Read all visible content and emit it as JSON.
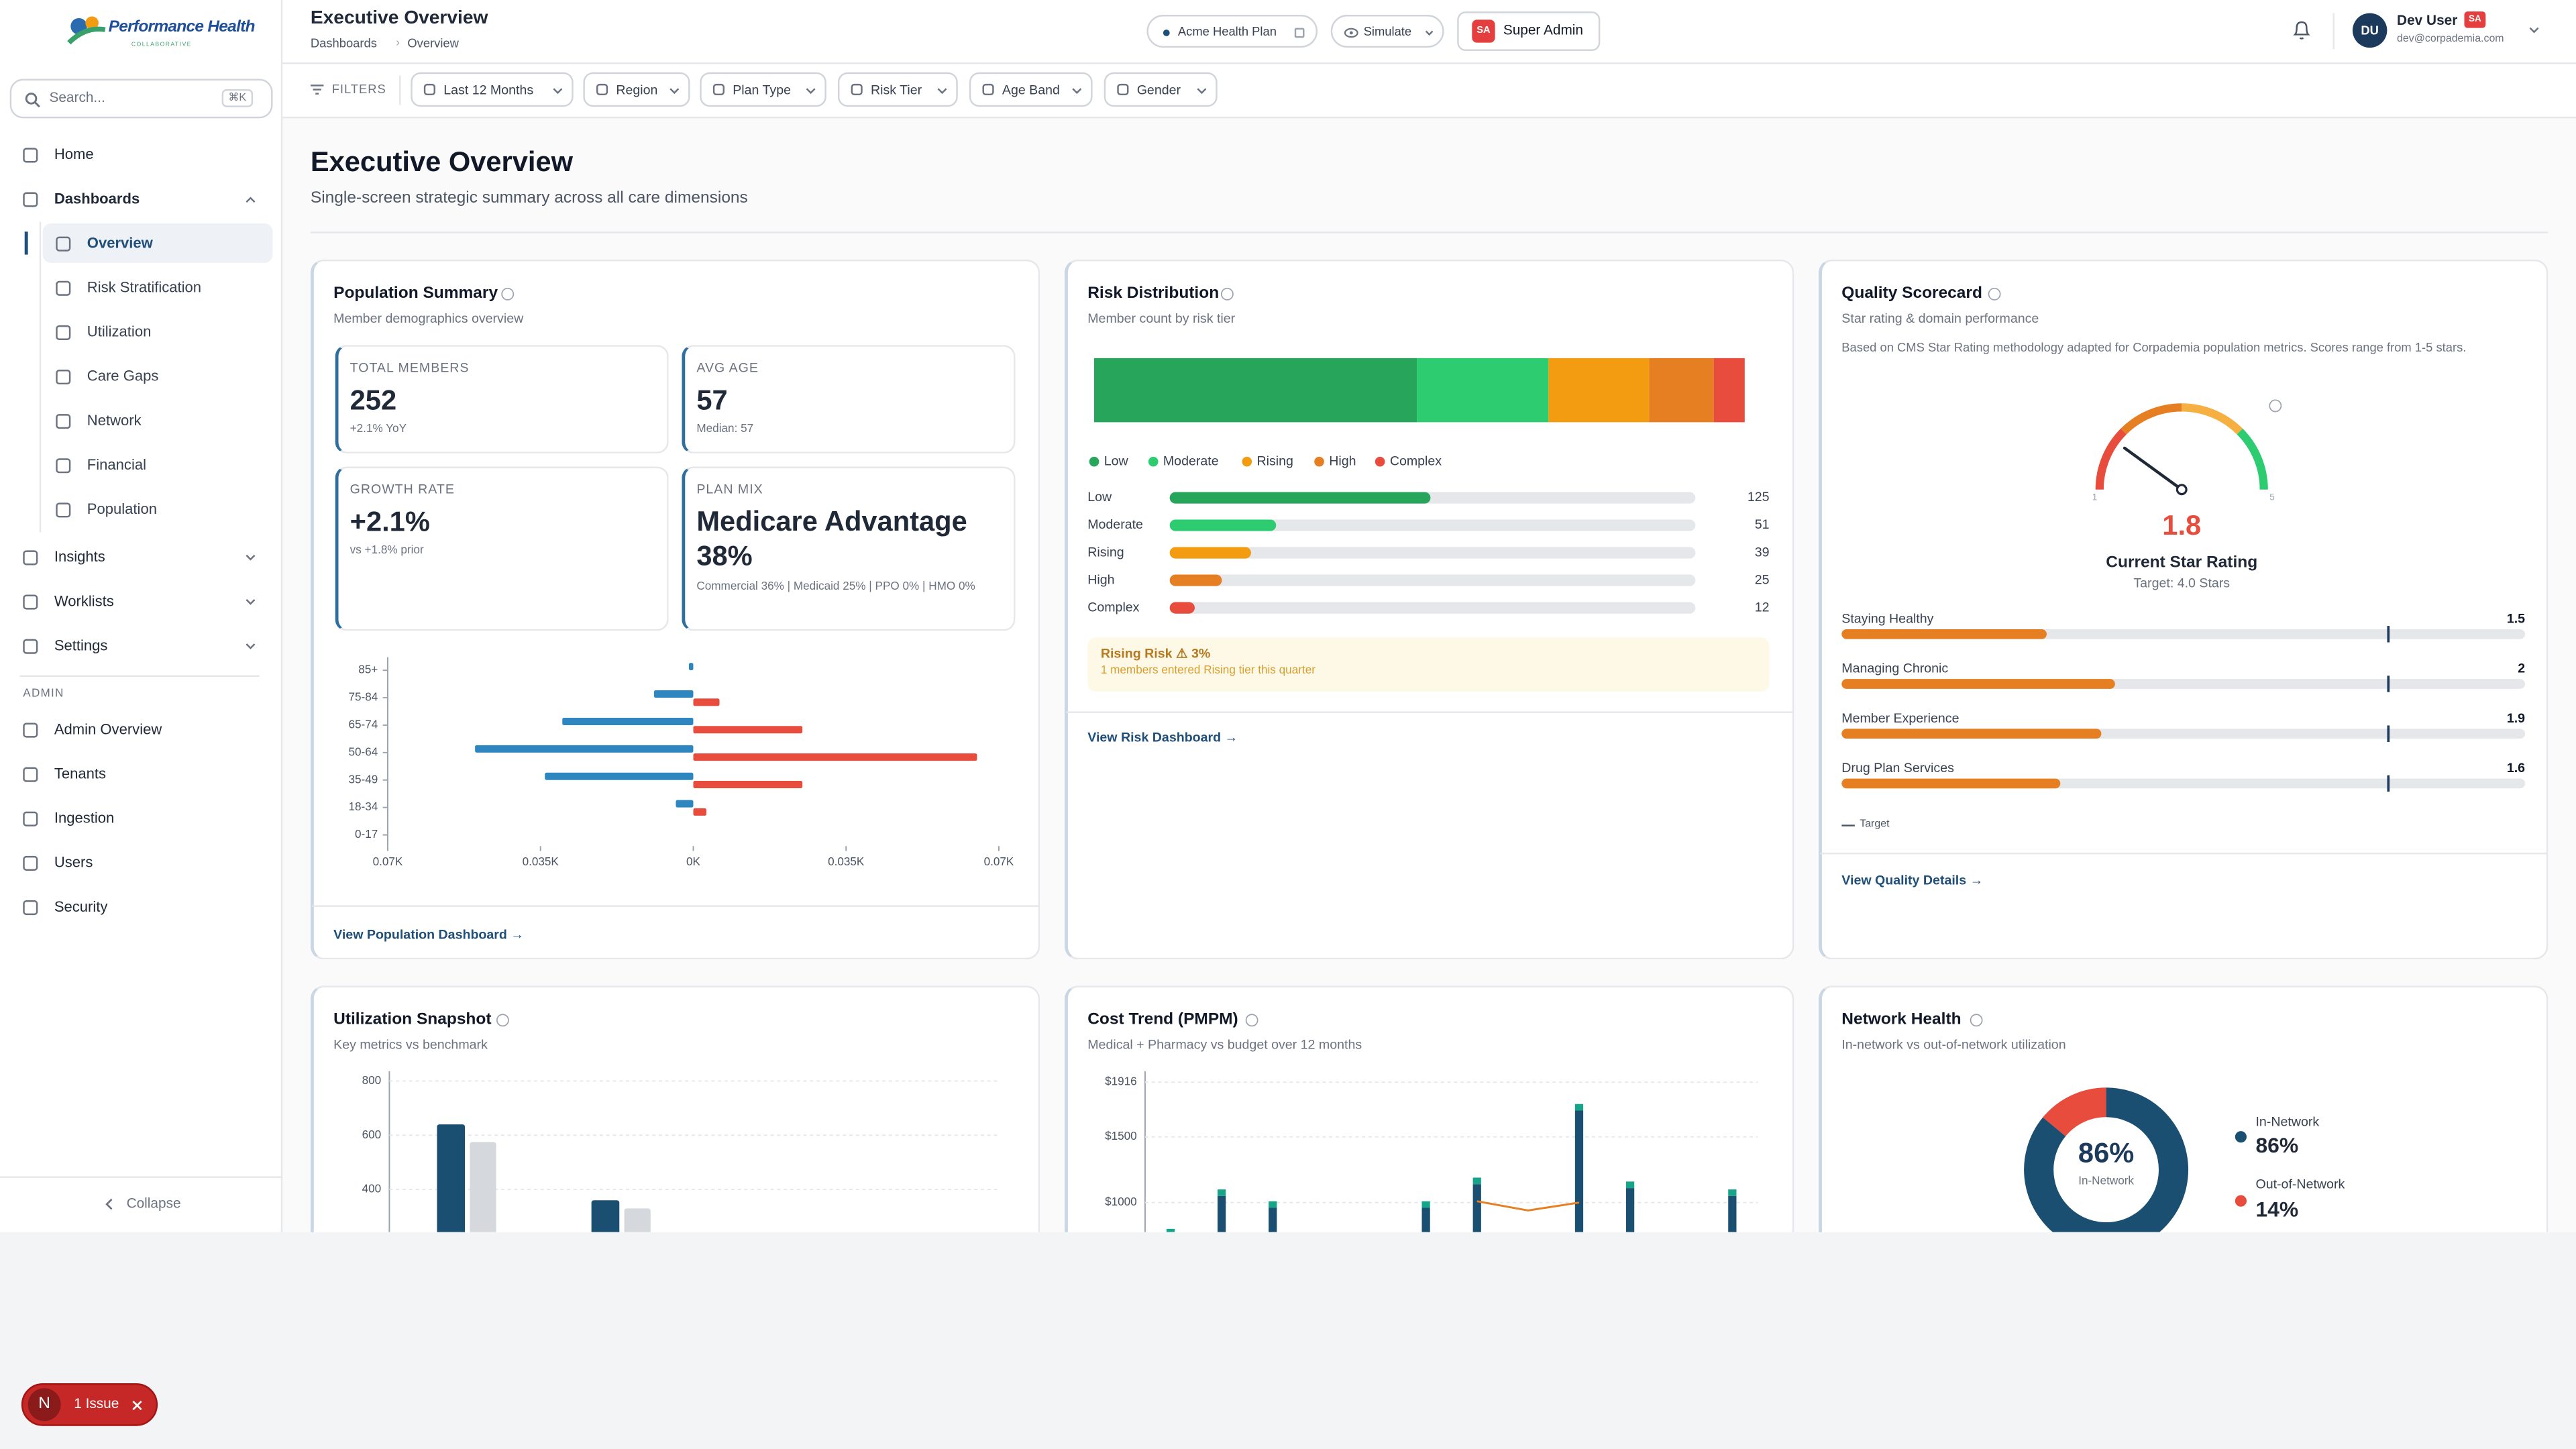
{
  "sidebar": {
    "brand": "Performance Health",
    "brand_tagline": "COLLABORATIVE",
    "search_placeholder": "Search...",
    "search_shortcut": "⌘K",
    "nav": [
      {
        "label": "Home"
      },
      {
        "label": "Dashboards",
        "children": [
          "Overview",
          "Risk Stratification",
          "Utilization",
          "Care Gaps",
          "Network",
          "Financial",
          "Population"
        ]
      },
      {
        "label": "Insights"
      },
      {
        "label": "Worklists"
      },
      {
        "label": "Settings"
      }
    ],
    "admin_heading": "ADMIN",
    "admin_nav": [
      "Admin Overview",
      "Tenants",
      "Ingestion",
      "Users",
      "Security"
    ],
    "collapse": "Collapse"
  },
  "header": {
    "title": "Executive Overview",
    "breadcrumbs": [
      "Dashboards",
      "Overview"
    ],
    "plan": "Acme Health Plan",
    "simulate": "Simulate",
    "role_badge": "SA",
    "role": "Super Admin",
    "user": {
      "initials": "DU",
      "name": "Dev User",
      "badge": "SA",
      "email": "dev@corpademia.com"
    }
  },
  "filters": {
    "label": "FILTERS",
    "items": [
      "Last 12 Months",
      "Region",
      "Plan Type",
      "Risk Tier",
      "Age Band",
      "Gender"
    ]
  },
  "page": {
    "title": "Executive Overview",
    "subtitle": "Single-screen strategic summary across all care dimensions"
  },
  "population": {
    "title": "Population Summary",
    "subtitle": "Member demographics overview",
    "stats": [
      {
        "label": "TOTAL MEMBERS",
        "value": 252,
        "note": "+2.1% YoY"
      },
      {
        "label": "AVG AGE",
        "value": 57,
        "note": "Median: 57"
      },
      {
        "label": "GROWTH RATE",
        "value": "+2.1%",
        "note": "vs +1.8% prior"
      },
      {
        "label": "PLAN MIX",
        "value": "Medicare Advantage 38%",
        "note": "Commercial 36% | Medicaid 25% | PPO 0% | HMO 0%"
      }
    ],
    "chart": {
      "type": "bar",
      "orientation": "horizontal",
      "categories": [
        "85+",
        "75-84",
        "65-74",
        "50-64",
        "35-49",
        "18-34",
        "0-17"
      ],
      "series": [
        {
          "color": "#2e86c1",
          "values": [
            -1,
            -9,
            -30,
            -50,
            -34,
            -4,
            0
          ]
        },
        {
          "color": "#e74c3c",
          "values": [
            0,
            6,
            25,
            65,
            25,
            3,
            0
          ]
        }
      ],
      "xlim": [
        -70,
        70
      ],
      "xticks": [
        {
          "value": -70,
          "label": "0.07K"
        },
        {
          "value": -35,
          "label": "0.035K"
        },
        {
          "value": 0,
          "label": "0K"
        },
        {
          "value": 35,
          "label": "0.035K"
        },
        {
          "value": 70,
          "label": "0.07K"
        }
      ]
    },
    "link": "View Population Dashboard →"
  },
  "risk": {
    "title": "Risk Distribution",
    "subtitle": "Member count by risk tier",
    "chart": {
      "type": "bar",
      "categories": [
        "Low",
        "Moderate",
        "Rising",
        "High",
        "Complex"
      ],
      "values": [
        125,
        51,
        39,
        25,
        12
      ],
      "colors": [
        "#27a55a",
        "#2ecc71",
        "#f39c12",
        "#e67e22",
        "#e74c3c"
      ]
    },
    "alert": {
      "title": "Rising Risk ⚠ 3%",
      "text": "1 members entered Rising tier this quarter"
    },
    "link": "View Risk Dashboard →"
  },
  "quality": {
    "title": "Quality Scorecard",
    "subtitle": "Star rating & domain performance",
    "description": "Based on CMS Star Rating methodology adapted for Corpademia population metrics. Scores range from 1-5 stars.",
    "gauge": {
      "type": "gauge",
      "value": 1.8,
      "range": [
        1,
        5
      ],
      "label": "Current Star Rating",
      "target_text": "Target: 4.0 Stars",
      "value_color": "#e74c3c"
    },
    "domains": {
      "type": "bar",
      "categories": [
        "Staying Healthy",
        "Managing Chronic",
        "Member Experience",
        "Drug Plan Services"
      ],
      "values": [
        1.5,
        2,
        1.9,
        1.6
      ],
      "xlim": [
        0,
        5
      ],
      "target": 4,
      "color": "#e67e22"
    },
    "legend_target": "Target",
    "link": "View Quality Details →"
  },
  "utilization": {
    "title": "Utilization Snapshot",
    "subtitle": "Key metrics vs benchmark",
    "chart": {
      "type": "bar",
      "categories": [
        null,
        null
      ],
      "series": [
        {
          "color": "#1b4f72",
          "values": [
            640,
            360
          ]
        },
        {
          "color": "#d5d8dc",
          "values": [
            575,
            330
          ]
        }
      ],
      "ylim": [
        0,
        800
      ],
      "yticks": [
        400,
        600,
        800
      ],
      "grid": true
    }
  },
  "cost": {
    "title": "Cost Trend (PMPM)",
    "subtitle": "Medical + Pharmacy vs budget over 12 months",
    "chart": {
      "type": "bar",
      "stacked": true,
      "categories": [
        null,
        null,
        null,
        null,
        null,
        null,
        null,
        null,
        null,
        null,
        null,
        null
      ],
      "series": [
        {
          "color": "#1b4f72",
          "values": [
            760,
            1050,
            960,
            null,
            null,
            960,
            1140,
            null,
            1700,
            1110,
            null,
            1050
          ]
        },
        {
          "color": "#17a589",
          "values": [
            40,
            50,
            50,
            null,
            null,
            50,
            50,
            null,
            50,
            50,
            null,
            50
          ]
        },
        {
          "type": "line",
          "color": "#e67e22",
          "values": [
            null,
            null,
            null,
            null,
            null,
            null,
            1010,
            940,
            1000,
            null,
            null,
            null
          ]
        }
      ],
      "ylim": [
        0,
        1916
      ],
      "yticks": [
        {
          "value": 1000,
          "label": "$1000"
        },
        {
          "value": 1500,
          "label": "$1500"
        },
        {
          "value": 1916,
          "label": "$1916"
        }
      ],
      "grid": true
    }
  },
  "network": {
    "title": "Network Health",
    "subtitle": "In-network vs out-of-network utilization",
    "chart": {
      "type": "pie",
      "donut": true,
      "categories": [
        "In-Network",
        "Out-of-Network"
      ],
      "values": [
        86,
        14
      ],
      "value_labels": [
        "86%",
        "14%"
      ],
      "colors": [
        "#1b4f72",
        "#e74c3c"
      ]
    }
  },
  "issue": {
    "icon": "N",
    "label": "1 Issue"
  }
}
